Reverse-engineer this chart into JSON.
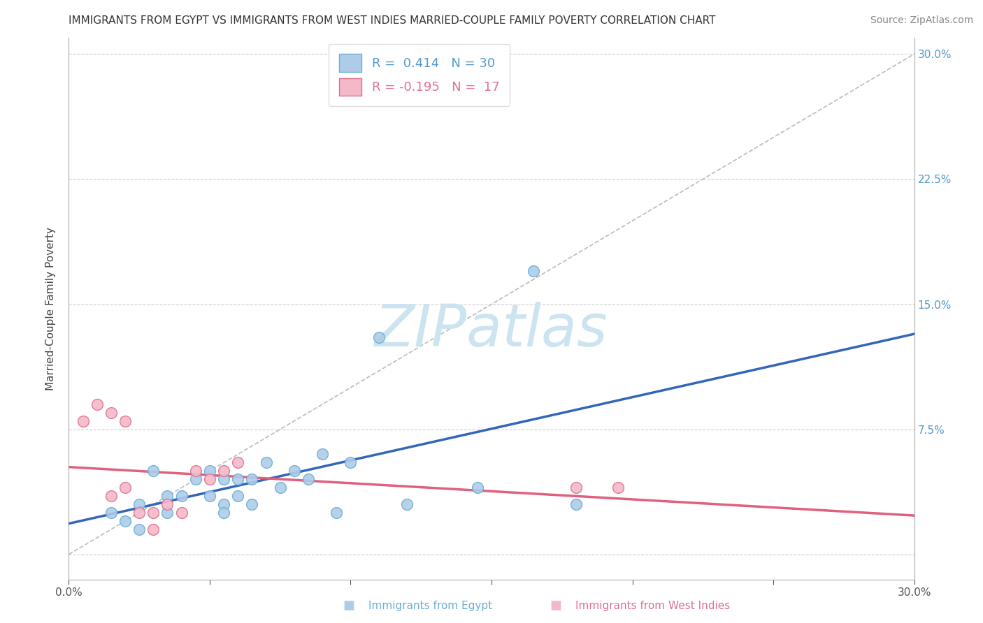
{
  "title": "IMMIGRANTS FROM EGYPT VS IMMIGRANTS FROM WEST INDIES MARRIED-COUPLE FAMILY POVERTY CORRELATION CHART",
  "source": "Source: ZipAtlas.com",
  "ylabel": "Married-Couple Family Poverty",
  "R_egypt": 0.414,
  "N_egypt": 30,
  "R_west_indies": -0.195,
  "N_west_indies": 17,
  "egypt_color": "#aecce8",
  "egypt_edge_color": "#6aaed6",
  "west_indies_color": "#f4b8c8",
  "west_indies_edge_color": "#e07090",
  "egypt_line_color": "#3366bb",
  "west_indies_line_color": "#e06080",
  "diagonal_color": "#bbbbbb",
  "watermark_color": "#cce4f0",
  "tick_color_right": "#5599cc",
  "egypt_x": [
    1.5,
    2.0,
    2.5,
    2.5,
    3.0,
    3.5,
    3.5,
    4.0,
    4.5,
    5.0,
    5.0,
    5.5,
    5.5,
    5.5,
    6.0,
    6.0,
    6.5,
    6.5,
    7.0,
    7.5,
    8.0,
    8.5,
    9.0,
    9.5,
    10.0,
    11.0,
    12.0,
    14.5,
    16.5,
    18.0
  ],
  "egypt_y": [
    2.5,
    2.0,
    3.0,
    1.5,
    5.0,
    3.5,
    2.5,
    3.5,
    4.5,
    5.0,
    3.5,
    4.5,
    3.0,
    2.5,
    4.5,
    3.5,
    4.5,
    3.0,
    5.5,
    4.0,
    5.0,
    4.5,
    6.0,
    2.5,
    5.5,
    13.0,
    3.0,
    4.0,
    17.0,
    3.0
  ],
  "west_indies_x": [
    0.5,
    1.0,
    1.5,
    1.5,
    2.0,
    2.0,
    2.5,
    3.0,
    3.0,
    3.5,
    4.0,
    4.5,
    5.0,
    5.5,
    6.0,
    18.0,
    19.5
  ],
  "west_indies_y": [
    8.0,
    9.0,
    8.5,
    3.5,
    8.0,
    4.0,
    2.5,
    2.5,
    1.5,
    3.0,
    2.5,
    5.0,
    4.5,
    5.0,
    5.5,
    4.0,
    4.0
  ],
  "title_fontsize": 11,
  "axis_label_fontsize": 11,
  "tick_fontsize": 11,
  "legend_fontsize": 13,
  "source_fontsize": 10,
  "watermark_fontsize": 60,
  "scatter_size": 130
}
